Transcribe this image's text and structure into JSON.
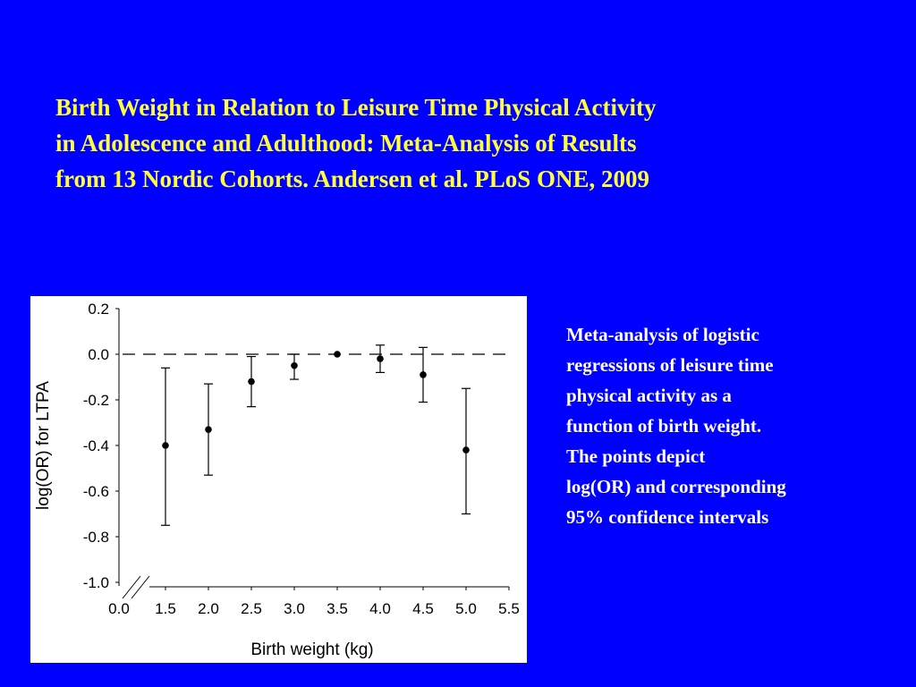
{
  "slide": {
    "title_lines": [
      "Birth Weight in Relation to Leisure Time Physical Activity",
      "in Adolescence and Adulthood: Meta-Analysis of Results",
      "from 13 Nordic Cohorts. Andersen et al. PLoS ONE, 2009"
    ],
    "caption_lines": [
      "Meta-analysis of logistic",
      "regressions of leisure time",
      "physical activity as a",
      "function of birth weight.",
      "The points depict",
      "log(OR) and corresponding",
      "95% confidence intervals"
    ],
    "colors": {
      "background": "#0000ff",
      "title": "#ffff33",
      "caption": "#ffffff",
      "chart_background": "#ffffff"
    }
  },
  "chart_data": {
    "type": "scatter",
    "title": "",
    "xlabel": "Birth weight (kg)",
    "ylabel": "log(OR) for LTPA",
    "xlim": [
      0.0,
      5.5
    ],
    "ylim": [
      -1.0,
      0.2
    ],
    "x_ticks": [
      "0.0",
      "1.5",
      "2.0",
      "2.5",
      "3.0",
      "3.5",
      "4.0",
      "4.5",
      "5.0",
      "5.5"
    ],
    "y_ticks": [
      "0.2",
      "0.0",
      "-0.2",
      "-0.4",
      "-0.6",
      "-0.8",
      "-1.0"
    ],
    "axis_break": true,
    "reference_line": {
      "y": 0.0,
      "style": "dashed"
    },
    "grid": false,
    "points": [
      {
        "x": 1.5,
        "y": -0.4,
        "ci_low": -0.75,
        "ci_high": -0.06
      },
      {
        "x": 2.0,
        "y": -0.33,
        "ci_low": -0.53,
        "ci_high": -0.13
      },
      {
        "x": 2.5,
        "y": -0.12,
        "ci_low": -0.23,
        "ci_high": -0.01
      },
      {
        "x": 3.0,
        "y": -0.05,
        "ci_low": -0.11,
        "ci_high": 0.0
      },
      {
        "x": 3.5,
        "y": 0.0,
        "ci_low": 0.0,
        "ci_high": 0.0
      },
      {
        "x": 4.0,
        "y": -0.02,
        "ci_low": -0.08,
        "ci_high": 0.04
      },
      {
        "x": 4.5,
        "y": -0.09,
        "ci_low": -0.21,
        "ci_high": 0.03
      },
      {
        "x": 5.0,
        "y": -0.42,
        "ci_low": -0.7,
        "ci_high": -0.15
      }
    ]
  }
}
